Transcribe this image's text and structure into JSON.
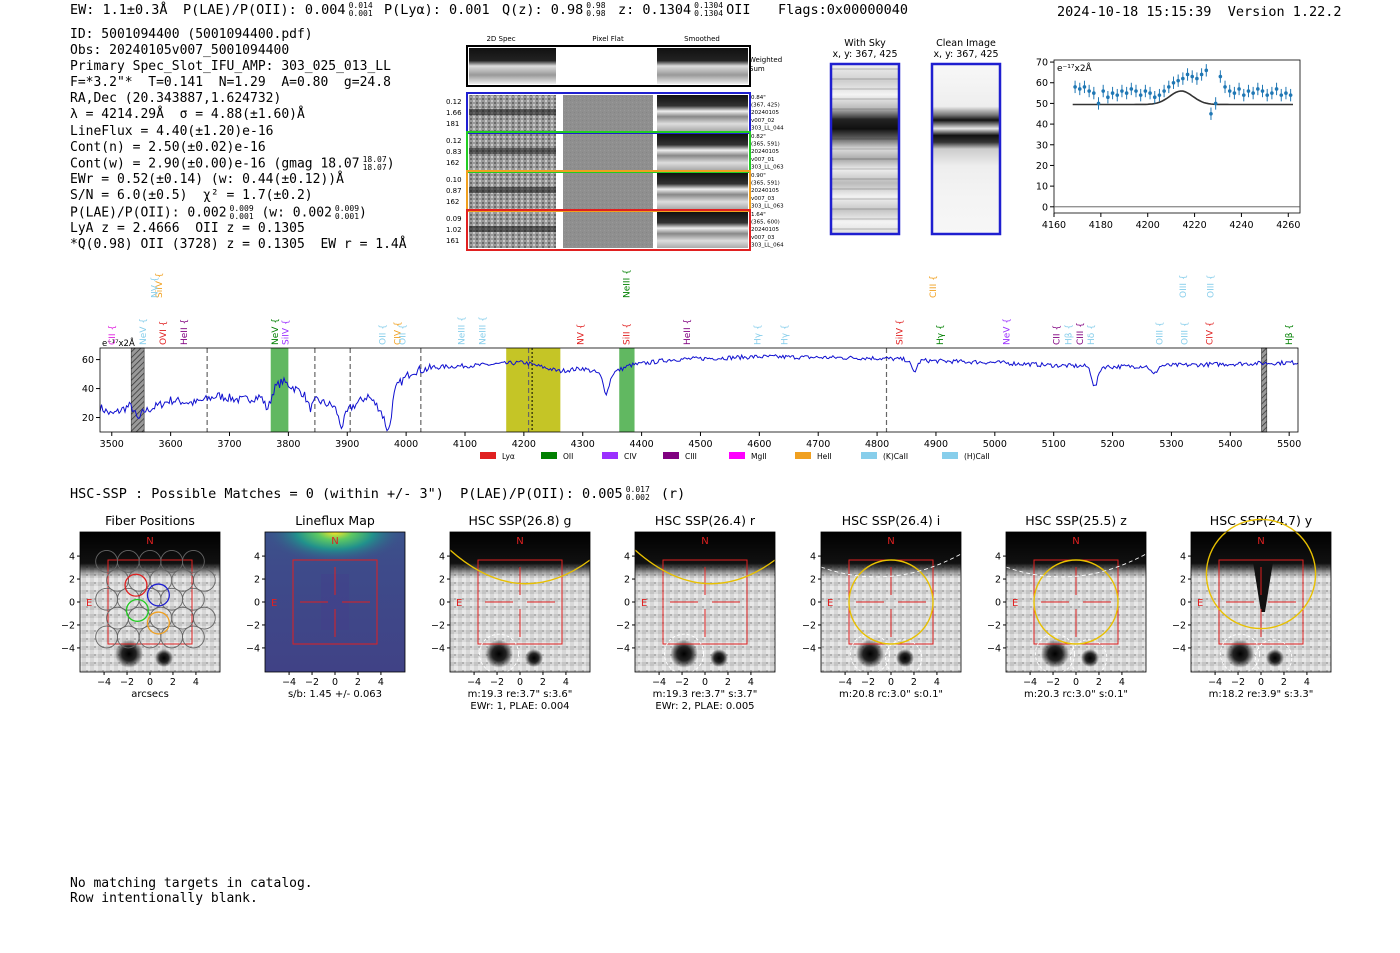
{
  "header": {
    "ew": "EW: 1.1±0.3Å",
    "plae_label": "P(LAE)/P(OII): 0.004",
    "plae_sup": "0.014",
    "plae_sub": "0.001",
    "plya": "P(Lyα): 0.001",
    "q_label": "Q(z): 0.98",
    "q_sup": "0.98",
    "q_sub": "0.98",
    "z_label": "z: 0.1304",
    "z_sup": "0.1304",
    "z_sub": "0.1304",
    "z_line": "OII",
    "flags": "Flags:0x00000040",
    "timestamp": "2024-10-18 15:15:39",
    "version": "Version 1.22.2"
  },
  "info": {
    "id": "ID: 5001094400 (5001094400.pdf)",
    "obs": "Obs: 20240105v007_5001094400",
    "primary": "Primary Spec_Slot_IFU_AMP: 303_025_013_LL",
    "fwhm": "F=*3.2\"*  T=0.141  N=1.29  A=0.80  g=24.8",
    "radec": "RA,Dec (20.343887,1.624732)",
    "lambda": "λ = 4214.29Å  σ = 4.88(±1.60)Å",
    "lineflux": "LineFlux = 4.40(±1.20)e-16",
    "cont_n": "Cont(n) = 2.50(±0.02)e-16",
    "cont_w": "Cont(w) = 2.90(±0.00)e-16 (gmag 18.07",
    "cont_w_sup": "18.07",
    "cont_w_sub": "18.07",
    "cont_w_end": ")",
    "ewr": "EWr = 0.52(±0.14) (w: 0.44(±0.12))Å",
    "sn": "S/N = 6.0(±0.5)  χ² = 1.7(±0.2)",
    "plae2_a": "P(LAE)/P(OII): 0.002",
    "plae2_a_sup": "0.009",
    "plae2_a_sub": "0.001",
    "plae2_b": " (w: 0.002",
    "plae2_b_sup": "0.009",
    "plae2_b_sub": "0.001",
    "plae2_c": ")",
    "lya_z": "LyA z = 2.4666  OII z = 0.1305",
    "q_oii": "*Q(0.98) OII (3728) z = 0.1305  EW r = 1.4Å"
  },
  "cutouts": {
    "col_titles": [
      "2D Spec",
      "Pixel Flat",
      "Smoothed"
    ],
    "weighted_sum": [
      "Weighted",
      "Sum"
    ],
    "rows": [
      {
        "left": [
          "0.12",
          "1.66",
          "181"
        ],
        "right": [
          "0.84\"",
          "(367, 425)",
          "20240105",
          "v007_02",
          "303_LL_044"
        ],
        "color": "#1f1fd0"
      },
      {
        "left": [
          "0.12",
          "0.83",
          "162"
        ],
        "right": [
          "0.82\"",
          "(365, 591)",
          "20240105",
          "v007_01",
          "303_LL_063"
        ],
        "color": "#22cc22"
      },
      {
        "left": [
          "0.10",
          "0.87",
          "162"
        ],
        "right": [
          "0.90\"",
          "(365, 591)",
          "20240105",
          "v007_03",
          "303_LL_063"
        ],
        "color": "#f0a020"
      },
      {
        "left": [
          "0.09",
          "1.02",
          "161"
        ],
        "right": [
          "1.64\"",
          "(365, 600)",
          "20240105",
          "v007_03",
          "303_LL_064"
        ],
        "color": "#e02020"
      }
    ]
  },
  "sky": {
    "with_sky_title": "With Sky",
    "with_sky_xy": "x, y: 367, 425",
    "clean_title": "Clean Image",
    "clean_xy": "x, y: 367, 425"
  },
  "chart_data": [
    {
      "type": "scatter",
      "title": "Line fit zoom",
      "ylabel_unit": "e⁻¹⁷x2Å",
      "xlim": [
        4160,
        4265
      ],
      "ylim": [
        -3,
        71
      ],
      "xticks": [
        4160,
        4180,
        4200,
        4220,
        4240,
        4260
      ],
      "yticks": [
        0,
        10,
        20,
        30,
        40,
        50,
        60,
        70
      ],
      "points": [
        [
          4169,
          58
        ],
        [
          4171,
          57
        ],
        [
          4173,
          58
        ],
        [
          4175,
          56
        ],
        [
          4177,
          55
        ],
        [
          4179,
          50
        ],
        [
          4181,
          56
        ],
        [
          4183,
          53
        ],
        [
          4185,
          55
        ],
        [
          4187,
          54
        ],
        [
          4189,
          56
        ],
        [
          4191,
          55
        ],
        [
          4193,
          57
        ],
        [
          4195,
          56
        ],
        [
          4197,
          54
        ],
        [
          4199,
          56
        ],
        [
          4201,
          55
        ],
        [
          4203,
          53
        ],
        [
          4205,
          54
        ],
        [
          4207,
          56
        ],
        [
          4209,
          58
        ],
        [
          4211,
          60
        ],
        [
          4213,
          61
        ],
        [
          4215,
          62
        ],
        [
          4217,
          64
        ],
        [
          4219,
          63
        ],
        [
          4221,
          62
        ],
        [
          4223,
          64
        ],
        [
          4225,
          66
        ],
        [
          4227,
          45
        ],
        [
          4229,
          50
        ],
        [
          4231,
          63
        ],
        [
          4233,
          58
        ],
        [
          4235,
          56
        ],
        [
          4237,
          55
        ],
        [
          4239,
          57
        ],
        [
          4241,
          54
        ],
        [
          4243,
          56
        ],
        [
          4245,
          55
        ],
        [
          4247,
          57
        ],
        [
          4249,
          56
        ],
        [
          4251,
          54
        ],
        [
          4253,
          55
        ],
        [
          4255,
          57
        ],
        [
          4257,
          54
        ],
        [
          4259,
          55
        ],
        [
          4261,
          54
        ]
      ],
      "fit": {
        "continuum": 49.5,
        "amplitude": 6.5,
        "center": 4214.3,
        "sigma": 4.9,
        "x_range": [
          4168,
          4262
        ]
      }
    },
    {
      "type": "line",
      "title": "Full spectrum",
      "ylabel_unit": "e⁻¹⁷x2Å",
      "xlim": [
        3480,
        5515
      ],
      "ylim": [
        10,
        68
      ],
      "xticks": [
        3500,
        3600,
        3700,
        3800,
        3900,
        4000,
        4100,
        4200,
        4300,
        4400,
        4500,
        4600,
        4700,
        4800,
        4900,
        5000,
        5100,
        5200,
        5300,
        5400,
        5500
      ],
      "yticks": [
        20,
        40,
        60
      ],
      "shape_nodes": [
        [
          3480,
          27
        ],
        [
          3500,
          22
        ],
        [
          3530,
          28
        ],
        [
          3560,
          25
        ],
        [
          3600,
          32
        ],
        [
          3640,
          30
        ],
        [
          3680,
          35
        ],
        [
          3720,
          32
        ],
        [
          3760,
          35
        ],
        [
          3790,
          45
        ],
        [
          3820,
          38
        ],
        [
          3860,
          30
        ],
        [
          3900,
          25
        ],
        [
          3935,
          35
        ],
        [
          3960,
          24
        ],
        [
          3985,
          42
        ],
        [
          4010,
          52
        ],
        [
          4060,
          55
        ],
        [
          4120,
          56
        ],
        [
          4200,
          58
        ],
        [
          4260,
          52
        ],
        [
          4300,
          54
        ],
        [
          4340,
          49
        ],
        [
          4380,
          56
        ],
        [
          4450,
          60
        ],
        [
          4600,
          62
        ],
        [
          4800,
          61
        ],
        [
          4900,
          59
        ],
        [
          5000,
          58
        ],
        [
          5100,
          56
        ],
        [
          5200,
          55
        ],
        [
          5300,
          56
        ],
        [
          5400,
          57
        ],
        [
          5515,
          58
        ]
      ],
      "absorption_dips": [
        [
          3545,
          -8
        ],
        [
          3765,
          -10
        ],
        [
          3837,
          -8
        ],
        [
          3890,
          -12
        ],
        [
          3970,
          -20
        ],
        [
          4340,
          -12
        ],
        [
          4863,
          -8
        ],
        [
          5170,
          -14
        ],
        [
          5270,
          -6
        ]
      ],
      "green_bands": [
        [
          3770,
          3800
        ],
        [
          4362,
          4388
        ]
      ],
      "yellow_band": [
        4170,
        4262
      ],
      "hatched_bands": [
        [
          3533,
          3555
        ],
        [
          5453,
          5462
        ]
      ],
      "dashed_lines": [
        3662,
        3845,
        3905,
        4025,
        4208,
        4816
      ],
      "dotted_line": 4214,
      "line_labels": [
        {
          "name": "CII",
          "x": 3500,
          "row": 1,
          "color": "#e020e0"
        },
        {
          "name": "NeV",
          "x": 3553,
          "row": 1,
          "color": "#87ceeb"
        },
        {
          "name": "SiIV",
          "x": 3580,
          "row": 3,
          "color": "#f0a020"
        },
        {
          "name": "NV",
          "x": 3573,
          "row": 3,
          "color": "#87ceeb"
        },
        {
          "name": "OVI",
          "x": 3587,
          "row": 1,
          "color": "#e02020"
        },
        {
          "name": "HeII",
          "x": 3623,
          "row": 1,
          "color": "#800080"
        },
        {
          "name": "NeV",
          "x": 3777,
          "row": 1,
          "color": "#008000"
        },
        {
          "name": "SiIV",
          "x": 3795,
          "row": 1,
          "color": "#9b30ff"
        },
        {
          "name": "OII",
          "x": 3960,
          "row": 1,
          "color": "#87ceeb"
        },
        {
          "name": "CIV",
          "x": 3985,
          "row": 1,
          "color": "#f0a020"
        },
        {
          "name": "OII",
          "x": 3994,
          "row": 1,
          "color": "#87ceeb"
        },
        {
          "name": "NeIII",
          "x": 4094,
          "row": 1,
          "color": "#87ceeb"
        },
        {
          "name": "NeIII",
          "x": 4130,
          "row": 1,
          "color": "#87ceeb"
        },
        {
          "name": "NV",
          "x": 4296,
          "row": 1,
          "color": "#e02020"
        },
        {
          "name": "SiII",
          "x": 4374,
          "row": 1,
          "color": "#e02020"
        },
        {
          "name": "NeIII",
          "x": 4374,
          "row": 3,
          "color": "#008000"
        },
        {
          "name": "HeII",
          "x": 4477,
          "row": 1,
          "color": "#800080"
        },
        {
          "name": "Hγ",
          "x": 4597,
          "row": 1,
          "color": "#87ceeb"
        },
        {
          "name": "Hγ",
          "x": 4643,
          "row": 1,
          "color": "#87ceeb"
        },
        {
          "name": "SiIV",
          "x": 4838,
          "row": 1,
          "color": "#e02020"
        },
        {
          "name": "CIII",
          "x": 4895,
          "row": 3,
          "color": "#f0a020"
        },
        {
          "name": "Hγ",
          "x": 4907,
          "row": 1,
          "color": "#008000"
        },
        {
          "name": "NeV",
          "x": 5020,
          "row": 1,
          "color": "#9b30ff"
        },
        {
          "name": "CII",
          "x": 5105,
          "row": 1,
          "color": "#800080"
        },
        {
          "name": "Hβ",
          "x": 5125,
          "row": 1,
          "color": "#87ceeb"
        },
        {
          "name": "CIII",
          "x": 5145,
          "row": 1,
          "color": "#800080"
        },
        {
          "name": "Hδ",
          "x": 5163,
          "row": 1,
          "color": "#87ceeb"
        },
        {
          "name": "OIII",
          "x": 5280,
          "row": 1,
          "color": "#87ceeb"
        },
        {
          "name": "OIII",
          "x": 5320,
          "row": 3,
          "color": "#87ceeb"
        },
        {
          "name": "OIII",
          "x": 5322,
          "row": 1,
          "color": "#87ceeb"
        },
        {
          "name": "OIII",
          "x": 5366,
          "row": 3,
          "color": "#87ceeb"
        },
        {
          "name": "CIV",
          "x": 5365,
          "row": 1,
          "color": "#e02020"
        },
        {
          "name": "Hβ",
          "x": 5500,
          "row": 1,
          "color": "#008000"
        }
      ],
      "legend": [
        {
          "label": "Lyα",
          "color": "#e02020"
        },
        {
          "label": "OII",
          "color": "#008000"
        },
        {
          "label": "CIV",
          "color": "#9b30ff"
        },
        {
          "label": "CIII",
          "color": "#800080"
        },
        {
          "label": "MgII",
          "color": "#ff00ff"
        },
        {
          "label": "HeII",
          "color": "#f0a020"
        },
        {
          "label": "(K)CaII",
          "color": "#87ceeb"
        },
        {
          "label": "(H)CaII",
          "color": "#87ceeb"
        }
      ]
    }
  ],
  "hsc": {
    "line_a": "HSC-SSP : Possible Matches = 0 (within +/- 3\")  P(LAE)/P(OII): 0.005",
    "line_sup": "0.017",
    "line_sub": "0.002",
    "line_b": " (r)",
    "ticks": [
      "4",
      "2",
      "0",
      "−2",
      "−4"
    ],
    "xticks": [
      "−4",
      "−2",
      "0",
      "2",
      "4"
    ],
    "panels": [
      {
        "title": "Fiber Positions",
        "cap1": "arcsecs",
        "cap2": "",
        "type": "fibers"
      },
      {
        "title": "Lineflux Map",
        "cap1": "s/b: 1.45 +/- 0.063",
        "cap2": "",
        "type": "lineflux"
      },
      {
        "title": "HSC SSP(26.8) g",
        "cap1": "m:19.3  re:3.7\"  s:3.6\"",
        "cap2": "EWr: 1, PLAE: 0.004",
        "type": "hsc",
        "ellipse": "top-band"
      },
      {
        "title": "HSC SSP(26.4) r",
        "cap1": "m:19.3  re:3.7\"  s:3.7\"",
        "cap2": "EWr: 2, PLAE: 0.005",
        "type": "hsc",
        "ellipse": "top-band"
      },
      {
        "title": "HSC SSP(26.4) i",
        "cap1": "m:20.8  rc:3.0\"  s:0.1\"",
        "cap2": "",
        "type": "hsc",
        "ellipse": "circle"
      },
      {
        "title": "HSC SSP(25.5) z",
        "cap1": "m:20.3  rc:3.0\"  s:0.1\"",
        "cap2": "",
        "type": "hsc",
        "ellipse": "circle"
      },
      {
        "title": "HSC SSP(24.7) y",
        "cap1": "m:18.2  re:3.9\"  s:3.3\"",
        "cap2": "",
        "type": "hsc",
        "ellipse": "big-circle"
      }
    ],
    "compass_n": "N",
    "compass_e": "E"
  },
  "footer": {
    "line1": "No matching targets in catalog.",
    "line2": "Row intentionally blank."
  }
}
